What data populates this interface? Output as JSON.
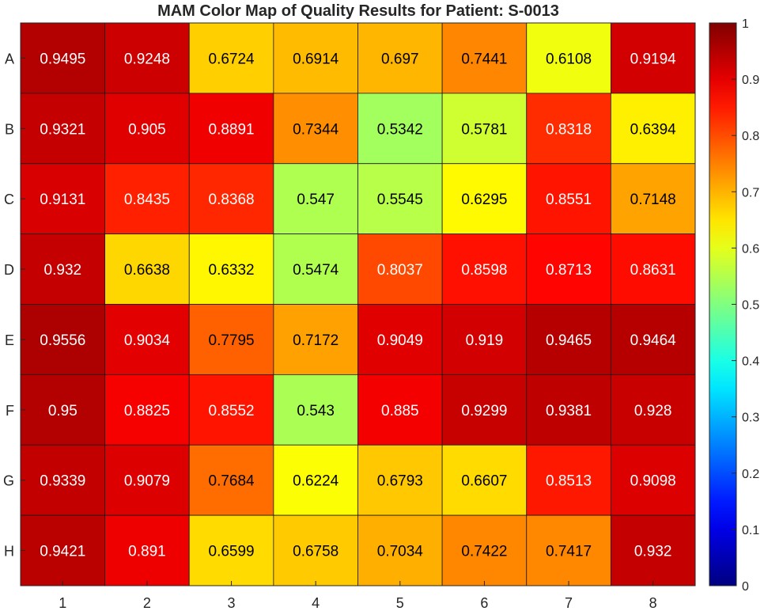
{
  "chart_data": {
    "type": "heatmap",
    "title": "MAM Color Map of Quality Results for Patient: S-0013",
    "x_categories": [
      "1",
      "2",
      "3",
      "4",
      "5",
      "6",
      "7",
      "8"
    ],
    "y_categories": [
      "A",
      "B",
      "C",
      "D",
      "E",
      "F",
      "G",
      "H"
    ],
    "values": [
      [
        0.9495,
        0.9248,
        0.6724,
        0.6914,
        0.697,
        0.7441,
        0.6108,
        0.9194
      ],
      [
        0.9321,
        0.905,
        0.8891,
        0.7344,
        0.5342,
        0.5781,
        0.8318,
        0.6394
      ],
      [
        0.9131,
        0.8435,
        0.8368,
        0.547,
        0.5545,
        0.6295,
        0.8551,
        0.7148
      ],
      [
        0.932,
        0.6638,
        0.6332,
        0.5474,
        0.8037,
        0.8598,
        0.8713,
        0.8631
      ],
      [
        0.9556,
        0.9034,
        0.7795,
        0.7172,
        0.9049,
        0.919,
        0.9465,
        0.9464
      ],
      [
        0.95,
        0.8825,
        0.8552,
        0.543,
        0.885,
        0.9299,
        0.9381,
        0.928
      ],
      [
        0.9339,
        0.9079,
        0.7684,
        0.6224,
        0.6793,
        0.6607,
        0.8513,
        0.9098
      ],
      [
        0.9421,
        0.891,
        0.6599,
        0.6758,
        0.7034,
        0.7422,
        0.7417,
        0.932
      ]
    ],
    "colormap": "jet",
    "color_limits": [
      0,
      1
    ],
    "colorbar_ticks": [
      "0",
      "0.1",
      "0.2",
      "0.3",
      "0.4",
      "0.5",
      "0.6",
      "0.7",
      "0.8",
      "0.9",
      "1"
    ],
    "grid": true,
    "colorbar_position": "right"
  }
}
